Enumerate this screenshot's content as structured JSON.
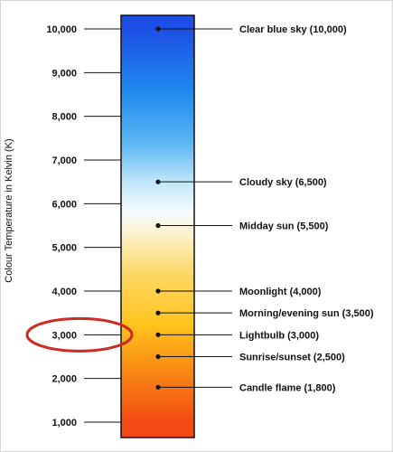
{
  "axis": {
    "title": "Colour Temperature in Kelvin (K)",
    "min": 1000,
    "max": 10000,
    "ticks": [
      {
        "value": 10000,
        "label": "10,000"
      },
      {
        "value": 9000,
        "label": "9,000"
      },
      {
        "value": 8000,
        "label": "8,000"
      },
      {
        "value": 7000,
        "label": "7,000"
      },
      {
        "value": 6000,
        "label": "6,000"
      },
      {
        "value": 5000,
        "label": "5,000"
      },
      {
        "value": 4000,
        "label": "4,000"
      },
      {
        "value": 3000,
        "label": "3,000"
      },
      {
        "value": 2000,
        "label": "2,000"
      },
      {
        "value": 1000,
        "label": "1,000"
      }
    ]
  },
  "annotations": [
    {
      "value": 10000,
      "label": "Clear blue sky (10,000)"
    },
    {
      "value": 6500,
      "label": "Cloudy sky (6,500)"
    },
    {
      "value": 5500,
      "label": "Midday sun (5,500)"
    },
    {
      "value": 4000,
      "label": "Moonlight (4,000)"
    },
    {
      "value": 3500,
      "label": "Morning/evening sun (3,500)"
    },
    {
      "value": 3000,
      "label": "Lightbulb (3,000)"
    },
    {
      "value": 2500,
      "label": "Sunrise/sunset (2,500)"
    },
    {
      "value": 1800,
      "label": "Candle flame (1,800)"
    }
  ],
  "highlight": {
    "value": 3000,
    "color": "#cc2a22"
  },
  "colors": {
    "gradient": [
      {
        "value": 10000,
        "color": "#1d4fe6"
      },
      {
        "value": 8600,
        "color": "#1e88ee"
      },
      {
        "value": 7400,
        "color": "#5ab6f2"
      },
      {
        "value": 6500,
        "color": "#bfe6f8"
      },
      {
        "value": 5800,
        "color": "#f6fbff"
      },
      {
        "value": 5300,
        "color": "#fdf2cc"
      },
      {
        "value": 4400,
        "color": "#fdd866"
      },
      {
        "value": 3200,
        "color": "#ffc21a"
      },
      {
        "value": 2200,
        "color": "#fa8a14"
      },
      {
        "value": 1000,
        "color": "#f24a12"
      }
    ],
    "bar_border": "#111111",
    "ink": "#111111"
  }
}
